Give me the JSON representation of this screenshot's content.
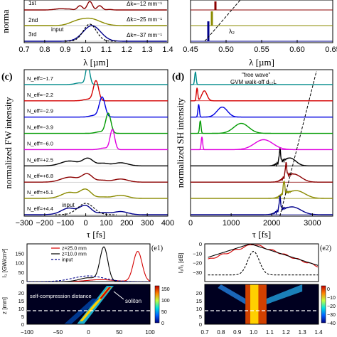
{
  "colors": {
    "maroon": "#8b0000",
    "olive": "#8b8b00",
    "navy": "#00008b",
    "teal": "#008b8b",
    "red": "#d40000",
    "blue": "#0000e0",
    "green": "#009a00",
    "magenta": "#e000e0",
    "black": "#000000",
    "dash": "#000000",
    "axis": "#000000"
  },
  "chart_data": [
    {
      "id": "a",
      "type": "line",
      "panel_label": "",
      "xlabel": "λ [µm]",
      "ylabel": "norma",
      "xlim": [
        0.7,
        1.4
      ],
      "xticks": [
        "0.7",
        "0.8",
        "0.9",
        "1.0",
        "1.1",
        "1.2",
        "1.3",
        "1.4"
      ],
      "series": [
        {
          "name": "1st",
          "color_key": "maroon"
        },
        {
          "name": "2nd",
          "color_key": "olive"
        },
        {
          "name": "3rd",
          "color_key": "navy"
        },
        {
          "name": "input",
          "color_key": "black",
          "dashed": true
        }
      ],
      "annotations": [
        "1st",
        "2nd",
        "3rd",
        "input",
        "Δk=−12 mm⁻¹",
        "Δk=−25 mm⁻¹",
        "Δk=−37 mm⁻¹"
      ]
    },
    {
      "id": "b",
      "type": "line",
      "panel_label": "",
      "xlabel": "λ [µm]",
      "ylabel": "",
      "xlim": [
        0.45,
        0.65
      ],
      "xticks": [
        "0.45",
        "0.50",
        "0.55",
        "0.60",
        "0.65"
      ],
      "annotations": [
        "λ₂"
      ]
    },
    {
      "id": "c",
      "type": "line",
      "panel_label": "(c)",
      "xlabel": "τ [fs]",
      "ylabel": "normalized FW intensity",
      "xlim": [
        -300,
        400
      ],
      "xticks": [
        "−300",
        "−200",
        "−100",
        "0",
        "100",
        "200",
        "300",
        "400"
      ],
      "series": [
        {
          "name": "N_eff=−1.7",
          "color_key": "teal",
          "peak_tau": 10,
          "width": 14
        },
        {
          "name": "N_eff=−2.2",
          "color_key": "red",
          "peak_tau": 50,
          "width": 18
        },
        {
          "name": "N_eff=−2.9",
          "color_key": "blue",
          "peak_tau": 80,
          "width": 20
        },
        {
          "name": "N_eff=−3.9",
          "color_key": "green",
          "peak_tau": 110,
          "width": 18
        },
        {
          "name": "N_eff=−6.0",
          "color_key": "magenta",
          "peak_tau": 130,
          "width": 16
        },
        {
          "name": "N_eff=+2.5",
          "color_key": "black",
          "peak_tau": 30,
          "width": 60
        },
        {
          "name": "N_eff=+6.8",
          "color_key": "maroon",
          "peak_tau": 20,
          "width": 60
        },
        {
          "name": "N_eff=+5.1",
          "color_key": "olive",
          "peak_tau": 0,
          "width": 70
        },
        {
          "name": "N_eff=+4.4",
          "color_key": "navy",
          "peak_tau": 0,
          "width": 80
        }
      ],
      "labels": [
        "N_eff=−1.7",
        "N_eff=−2.2",
        "N_eff=−2.9",
        "N_eff=−3.9",
        "N_eff=−6.0",
        "N_eff=+2.5",
        "N_eff=+6.8",
        "N_eff=+5.1",
        "N_eff=+4.4"
      ],
      "input_label": "input"
    },
    {
      "id": "d",
      "type": "line",
      "panel_label": "(d)",
      "xlabel": "τ [fs]",
      "ylabel": "normalized SH intensity",
      "xlim": [
        0,
        3500
      ],
      "xticks": [
        "0",
        "1000",
        "2000",
        "3000"
      ],
      "series": [
        {
          "color_key": "teal",
          "spike_tau": 120,
          "bump_tau": null,
          "bump_w": 0
        },
        {
          "color_key": "red",
          "spike_tau": 160,
          "bump_tau": 340,
          "bump_w": 90
        },
        {
          "color_key": "blue",
          "spike_tau": 200,
          "bump_tau": 780,
          "bump_w": 180
        },
        {
          "color_key": "green",
          "spike_tau": 240,
          "bump_tau": 1250,
          "bump_w": 260
        },
        {
          "color_key": "magenta",
          "spike_tau": 280,
          "bump_tau": 1800,
          "bump_w": 320
        },
        {
          "color_key": "black",
          "spike_tau": 2200,
          "bump_tau": 2450,
          "bump_w": 200
        },
        {
          "color_key": "maroon",
          "spike_tau": 2350,
          "bump_tau": 2550,
          "bump_w": 250
        },
        {
          "color_key": "olive",
          "spike_tau": 2300,
          "bump_tau": 2600,
          "bump_w": 300
        },
        {
          "color_key": "navy",
          "spike_tau": 2200,
          "bump_tau": 2500,
          "bump_w": 300
        }
      ],
      "annotations": [
        "\"free wave\"",
        "GVM walk-off d₁₂L"
      ]
    },
    {
      "id": "e1",
      "type": "heatmap",
      "panel_label": "(e1)",
      "xlabel": "",
      "ylabel_top": "I₁ [GW/cm²]",
      "ylabel_bottom": "z [mm]",
      "xlim": [
        -100,
        100
      ],
      "xticks": [
        "−100",
        "−50",
        "0",
        "50",
        "100"
      ],
      "ytop_ticks": [
        "0",
        "50",
        "100",
        "150"
      ],
      "ybot_ticks": [
        "0",
        "5",
        "10",
        "15",
        "20"
      ],
      "colorbar_ticks": [
        "0",
        "50",
        "100",
        "150"
      ],
      "legend": [
        "z=25.0 mm",
        "z=10.0 mm",
        "input"
      ],
      "annotations": [
        "self-compression distance",
        "soliton"
      ]
    },
    {
      "id": "e2",
      "type": "heatmap",
      "panel_label": "(e2)",
      "xlabel": "",
      "ylabel_top": "I₁/I₁ [dB]",
      "ylabel_bottom": "",
      "xlim": [
        0.7,
        1.4
      ],
      "xticks": [
        "0.7",
        "0.8",
        "0.9",
        "1.0",
        "1.1",
        "1.2",
        "1.3",
        "1.4"
      ],
      "ytop_ticks": [
        "−30",
        "−20",
        "−10",
        "0"
      ],
      "ybot_ticks": [
        "0",
        "5",
        "10",
        "15",
        "20"
      ],
      "colorbar_ticks": [
        "0",
        "−10",
        "−20",
        "−30",
        "−40"
      ]
    }
  ]
}
